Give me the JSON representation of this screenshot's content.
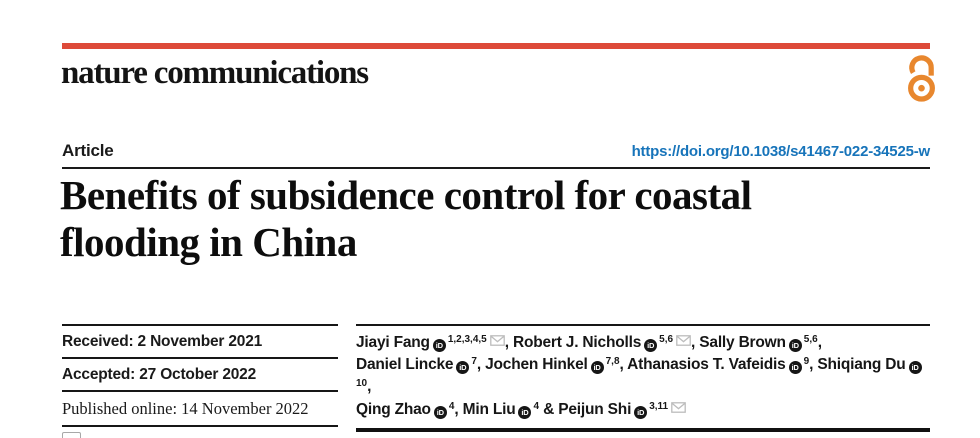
{
  "brand": {
    "journal_name": "nature communications",
    "bar_color": "#dd4a39",
    "open_access_icon": "open-padlock",
    "open_access_color": "#e8872e"
  },
  "article": {
    "label": "Article",
    "doi": "https://doi.org/10.1038/s41467-022-34525-w",
    "doi_color": "#1774ba"
  },
  "title_lines": [
    "Benefits of subsidence control for coastal",
    "flooding in China"
  ],
  "dates": [
    {
      "text": "Received: 2 November 2021",
      "style": "sans"
    },
    {
      "text": "Accepted: 27 October 2022",
      "style": "sans"
    },
    {
      "text": "Published online: 14 November 2022",
      "style": "serif"
    }
  ],
  "icons": {
    "orcid_label": "iD",
    "envelope_color": "#bdbdbd"
  },
  "authors": [
    {
      "name": "Jiayi Fang",
      "orcid": true,
      "sup": "1,2,3,4,5",
      "email": true,
      "sep": ", ",
      "break": false
    },
    {
      "name": "Robert J. Nicholls",
      "orcid": true,
      "sup": "5,6",
      "email": true,
      "sep": ", ",
      "break": false
    },
    {
      "name": "Sally Brown",
      "orcid": true,
      "sup": "5,6",
      "email": false,
      "sep": ",",
      "break": true
    },
    {
      "name": "Daniel Lincke",
      "orcid": true,
      "sup": "7",
      "email": false,
      "sep": ", ",
      "break": false
    },
    {
      "name": "Jochen Hinkel",
      "orcid": true,
      "sup": "7,8",
      "email": false,
      "sep": ", ",
      "break": false
    },
    {
      "name": "Athanasios T. Vafeidis",
      "orcid": true,
      "sup": "9",
      "email": false,
      "sep": ", ",
      "break": false
    },
    {
      "name": "Shiqiang Du",
      "orcid": true,
      "sup": "10",
      "email": false,
      "sep": ",",
      "break": true
    },
    {
      "name": "Qing Zhao",
      "orcid": true,
      "sup": "4",
      "email": false,
      "sep": ", ",
      "break": false
    },
    {
      "name": "Min Liu",
      "orcid": true,
      "sup": "4",
      "email": false,
      "sep": " & ",
      "break": false
    },
    {
      "name": "Peijun Shi",
      "orcid": true,
      "sup": "3,11",
      "email": true,
      "sep": "",
      "break": false
    }
  ]
}
